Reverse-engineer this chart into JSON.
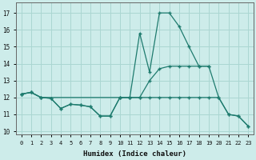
{
  "xlabel": "Humidex (Indice chaleur)",
  "xlim": [
    -0.5,
    23.5
  ],
  "ylim": [
    9.8,
    17.6
  ],
  "yticks": [
    10,
    11,
    12,
    13,
    14,
    15,
    16,
    17
  ],
  "xticks": [
    0,
    1,
    2,
    3,
    4,
    5,
    6,
    7,
    8,
    9,
    10,
    11,
    12,
    13,
    14,
    15,
    16,
    17,
    18,
    19,
    20,
    21,
    22,
    23
  ],
  "background_color": "#cdecea",
  "grid_color": "#aad6d2",
  "line_color": "#1e7b6e",
  "line1_x": [
    0,
    1,
    2,
    3,
    4,
    5,
    6,
    7,
    8,
    9,
    10,
    11,
    12,
    13,
    14,
    15,
    16,
    17,
    18,
    19
  ],
  "line1_y": [
    12.2,
    12.3,
    12.0,
    11.95,
    11.35,
    11.6,
    11.55,
    11.45,
    10.9,
    10.9,
    12.0,
    12.0,
    15.8,
    13.5,
    17.0,
    17.0,
    16.2,
    15.0,
    13.85,
    13.85
  ],
  "line2_x": [
    0,
    1,
    2,
    10,
    11,
    12,
    13,
    14,
    15,
    16,
    17,
    18,
    19,
    20,
    21,
    22,
    23
  ],
  "line2_y": [
    12.2,
    12.3,
    12.0,
    12.0,
    12.0,
    12.0,
    13.0,
    13.7,
    13.85,
    13.85,
    13.85,
    13.85,
    13.85,
    12.0,
    11.0,
    10.9,
    10.3
  ],
  "line3_x": [
    0,
    1,
    2,
    3,
    4,
    5,
    6,
    7,
    8,
    9,
    10,
    11,
    12,
    13,
    14,
    15,
    16,
    17,
    18,
    19,
    20,
    21,
    22,
    23
  ],
  "line3_y": [
    12.2,
    12.3,
    12.0,
    11.95,
    11.35,
    11.6,
    11.55,
    11.45,
    10.9,
    10.9,
    12.0,
    12.0,
    12.0,
    12.0,
    12.0,
    12.0,
    12.0,
    12.0,
    12.0,
    12.0,
    12.0,
    11.0,
    10.9,
    10.3
  ]
}
